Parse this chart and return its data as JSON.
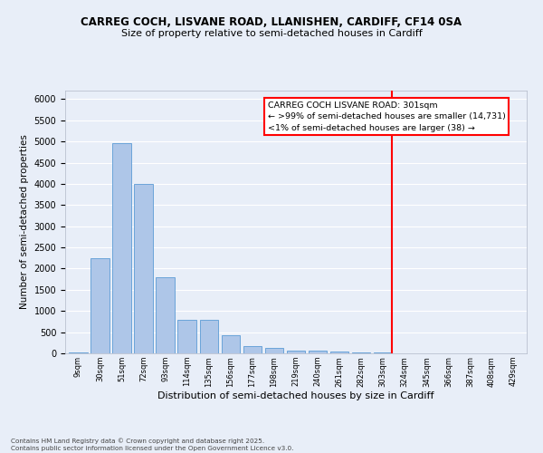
{
  "title1": "CARREG COCH, LISVANE ROAD, LLANISHEN, CARDIFF, CF14 0SA",
  "title2": "Size of property relative to semi-detached houses in Cardiff",
  "xlabel": "Distribution of semi-detached houses by size in Cardiff",
  "ylabel": "Number of semi-detached properties",
  "bar_labels": [
    "9sqm",
    "30sqm",
    "51sqm",
    "72sqm",
    "93sqm",
    "114sqm",
    "135sqm",
    "156sqm",
    "177sqm",
    "198sqm",
    "219sqm",
    "240sqm",
    "261sqm",
    "282sqm",
    "303sqm",
    "324sqm",
    "345sqm",
    "366sqm",
    "387sqm",
    "408sqm",
    "429sqm"
  ],
  "bar_values": [
    30,
    2250,
    4950,
    4000,
    1800,
    800,
    800,
    420,
    170,
    130,
    70,
    60,
    50,
    30,
    20,
    10,
    5,
    3,
    2,
    1,
    1
  ],
  "bar_color": "#aec6e8",
  "bar_edge_color": "#5b9bd5",
  "vline_pos": 14.425,
  "vline_color": "red",
  "annotation_title": "CARREG COCH LISVANE ROAD: 301sqm",
  "annotation_line1": "← >99% of semi-detached houses are smaller (14,731)",
  "annotation_line2": "<1% of semi-detached houses are larger (38) →",
  "ylim": [
    0,
    6200
  ],
  "yticks": [
    0,
    500,
    1000,
    1500,
    2000,
    2500,
    3000,
    3500,
    4000,
    4500,
    5000,
    5500,
    6000
  ],
  "footer1": "Contains HM Land Registry data © Crown copyright and database right 2025.",
  "footer2": "Contains public sector information licensed under the Open Government Licence v3.0.",
  "bg_color": "#e8eef8",
  "grid_color": "white"
}
